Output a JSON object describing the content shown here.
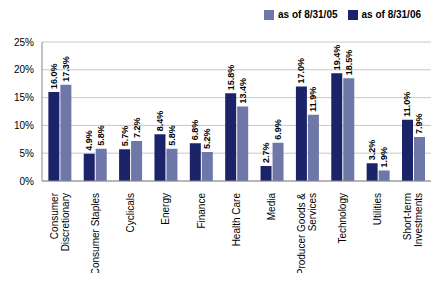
{
  "chart_data": {
    "type": "bar",
    "categories": [
      "Consumer Discretionary",
      "Consumer Staples",
      "Cyclicals",
      "Energy",
      "Finance",
      "Health Care",
      "Media",
      "Producer Goods & Services",
      "Technology",
      "Utilities",
      "Short-term Investments"
    ],
    "series": [
      {
        "name": "as of 8/31/06",
        "color": "#1b2468",
        "values": [
          16.0,
          4.9,
          5.7,
          8.4,
          6.8,
          15.8,
          2.7,
          17.0,
          19.4,
          3.2,
          11.0
        ],
        "value_labels": [
          "16.0%",
          "4.9%",
          "5.7%",
          "8.4%",
          "6.8%",
          "15.8%",
          "2.7%",
          "17.0%",
          "19.4%",
          "3.2%",
          "11.0%"
        ]
      },
      {
        "name": "as of 8/31/05",
        "color": "#6f77a9",
        "values": [
          17.3,
          5.8,
          7.2,
          5.8,
          5.2,
          13.4,
          6.9,
          11.9,
          18.5,
          1.9,
          7.9
        ],
        "value_labels": [
          "17.3%",
          "5.8%",
          "7.2%",
          "5.8%",
          "5.2%",
          "13.4%",
          "6.9%",
          "11.9%",
          "18.5%",
          "1.9%",
          "7.9%"
        ]
      }
    ],
    "ylim": [
      0,
      25
    ],
    "yticks": [
      {
        "value": 0,
        "label": "0%"
      },
      {
        "value": 5,
        "label": "5%"
      },
      {
        "value": 10,
        "label": "10%"
      },
      {
        "value": 15,
        "label": "15%"
      },
      {
        "value": 20,
        "label": "20%"
      },
      {
        "value": 25,
        "label": "25%"
      }
    ],
    "grid": true,
    "legend": "top-right",
    "data_labels": true
  }
}
